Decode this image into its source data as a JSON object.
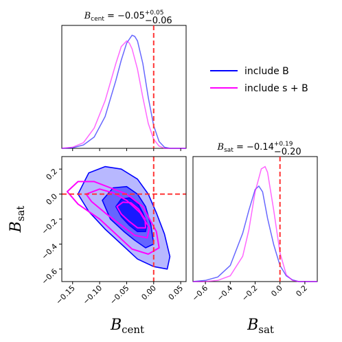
{
  "chart_data": {
    "type": "line",
    "title": "",
    "legend": {
      "placement": "top-right",
      "entries": [
        {
          "label": "include B",
          "color": "#0000ff"
        },
        {
          "label": "include s + B",
          "color": "#ff00ff"
        }
      ]
    },
    "reference_value": {
      "B_cent": 0.0,
      "B_sat": 0.0,
      "color": "#ff3333"
    },
    "panels": [
      {
        "id": "bcent_marginal",
        "type": "line",
        "title": {
          "var": "B",
          "sub": "cent",
          "text": " = −0.05",
          "sup": "+0.05",
          "low": "−0.06"
        },
        "xlim": [
          -0.17,
          0.06
        ],
        "series": [
          {
            "name": "include B",
            "color": "#0000ff",
            "x": [
              -0.17,
              -0.15,
              -0.13,
              -0.11,
              -0.09,
              -0.07,
              -0.06,
              -0.05,
              -0.04,
              -0.035,
              -0.03,
              -0.02,
              -0.01,
              0.0,
              0.01,
              0.02,
              0.03,
              0.04,
              0.05,
              0.06
            ],
            "y": [
              0.0,
              0.005,
              0.03,
              0.1,
              0.28,
              0.6,
              0.78,
              0.93,
              1.0,
              0.99,
              0.95,
              0.75,
              0.45,
              0.2,
              0.06,
              0.01,
              0.0,
              0.0,
              0.0,
              0.0
            ]
          },
          {
            "name": "include s + B",
            "color": "#ff00ff",
            "x": [
              -0.17,
              -0.15,
              -0.13,
              -0.11,
              -0.09,
              -0.07,
              -0.06,
              -0.05,
              -0.045,
              -0.04,
              -0.03,
              -0.02,
              -0.01,
              0.0,
              0.01,
              0.02,
              0.03,
              0.04,
              0.05,
              0.06
            ],
            "y": [
              0.0,
              0.01,
              0.05,
              0.18,
              0.42,
              0.75,
              0.9,
              0.95,
              0.93,
              0.88,
              0.7,
              0.45,
              0.22,
              0.08,
              0.02,
              0.0,
              0.0,
              0.0,
              0.0,
              0.0
            ]
          }
        ]
      },
      {
        "id": "bsat_marginal",
        "type": "line",
        "title": {
          "var": "B",
          "sub": "sat",
          "text": " = −0.14",
          "sup": "+0.19",
          "low": "−0.20"
        },
        "xlim": [
          -0.7,
          0.3
        ],
        "xticks": [
          -0.6,
          -0.4,
          -0.2,
          0.0,
          0.2
        ],
        "xtick_labels": [
          "−0.6",
          "−0.4",
          "−0.2",
          "0.0",
          "0.2"
        ],
        "xlabel": {
          "var": "B",
          "sub": "sat"
        },
        "series": [
          {
            "name": "include B",
            "color": "#0000ff",
            "x": [
              -0.7,
              -0.6,
              -0.5,
              -0.4,
              -0.3,
              -0.25,
              -0.2,
              -0.17,
              -0.14,
              -0.1,
              -0.05,
              0.0,
              0.05,
              0.1,
              0.15,
              0.2,
              0.25,
              0.3
            ],
            "y": [
              0.0,
              0.01,
              0.04,
              0.14,
              0.42,
              0.62,
              0.8,
              0.83,
              0.78,
              0.55,
              0.32,
              0.14,
              0.05,
              0.015,
              0.0,
              0.0,
              0.0,
              0.0
            ]
          },
          {
            "name": "include s + B",
            "color": "#ff00ff",
            "x": [
              -0.7,
              -0.6,
              -0.5,
              -0.4,
              -0.3,
              -0.25,
              -0.2,
              -0.15,
              -0.12,
              -0.1,
              -0.05,
              0.0,
              0.05,
              0.1,
              0.15,
              0.2,
              0.25,
              0.3
            ],
            "y": [
              0.0,
              0.0,
              0.01,
              0.05,
              0.22,
              0.45,
              0.78,
              0.98,
              1.0,
              0.95,
              0.62,
              0.25,
              0.06,
              0.01,
              0.0,
              0.0,
              0.0,
              0.0
            ]
          }
        ]
      },
      {
        "id": "joint",
        "type": "contour",
        "xlim": [
          -0.17,
          0.06
        ],
        "ylim": [
          -0.7,
          0.3
        ],
        "xticks": [
          -0.15,
          -0.1,
          -0.05,
          0.0,
          0.05
        ],
        "xtick_labels": [
          "−0.15",
          "−0.10",
          "−0.05",
          "0.00",
          "0.05"
        ],
        "yticks": [
          -0.6,
          -0.4,
          -0.2,
          0.0,
          0.2
        ],
        "ytick_labels": [
          "−0.6",
          "−0.4",
          "−0.2",
          "0.0",
          "0.2"
        ],
        "xlabel": {
          "var": "B",
          "sub": "cent"
        },
        "ylabel": {
          "var": "B",
          "sub": "sat"
        },
        "series": [
          {
            "name": "include B",
            "color": "#0000ff",
            "filled": true,
            "contours": [
              {
                "level": 0.997,
                "fill_opacity": 0.28,
                "points": [
                  [
                    -0.14,
                    0.0
                  ],
                  [
                    -0.12,
                    0.17
                  ],
                  [
                    -0.09,
                    0.22
                  ],
                  [
                    -0.06,
                    0.2
                  ],
                  [
                    -0.03,
                    0.12
                  ],
                  [
                    -0.01,
                    0.0
                  ],
                  [
                    0.005,
                    -0.15
                  ],
                  [
                    0.02,
                    -0.32
                  ],
                  [
                    0.03,
                    -0.5
                  ],
                  [
                    0.025,
                    -0.6
                  ],
                  [
                    0.0,
                    -0.58
                  ],
                  [
                    -0.03,
                    -0.52
                  ],
                  [
                    -0.06,
                    -0.4
                  ],
                  [
                    -0.09,
                    -0.28
                  ],
                  [
                    -0.12,
                    -0.14
                  ]
                ]
              },
              {
                "level": 0.95,
                "fill_opacity": 0.45,
                "points": [
                  [
                    -0.095,
                    -0.05
                  ],
                  [
                    -0.075,
                    0.05
                  ],
                  [
                    -0.05,
                    0.06
                  ],
                  [
                    -0.03,
                    0.0
                  ],
                  [
                    -0.015,
                    -0.1
                  ],
                  [
                    -0.005,
                    -0.25
                  ],
                  [
                    0.0,
                    -0.4
                  ],
                  [
                    -0.015,
                    -0.43
                  ],
                  [
                    -0.035,
                    -0.37
                  ],
                  [
                    -0.055,
                    -0.3
                  ],
                  [
                    -0.08,
                    -0.2
                  ]
                ]
              },
              {
                "level": 0.68,
                "fill_opacity": 0.75,
                "points": [
                  [
                    -0.07,
                    -0.1
                  ],
                  [
                    -0.06,
                    -0.04
                  ],
                  [
                    -0.045,
                    -0.03
                  ],
                  [
                    -0.03,
                    -0.07
                  ],
                  [
                    -0.02,
                    -0.15
                  ],
                  [
                    -0.012,
                    -0.24
                  ],
                  [
                    -0.015,
                    -0.3
                  ],
                  [
                    -0.03,
                    -0.3
                  ],
                  [
                    -0.045,
                    -0.25
                  ],
                  [
                    -0.06,
                    -0.18
                  ]
                ]
              }
            ]
          },
          {
            "name": "include s + B",
            "color": "#ff00ff",
            "filled": false,
            "contours": [
              {
                "level": 0.997,
                "points": [
                  [
                    -0.16,
                    0.02
                  ],
                  [
                    -0.14,
                    0.1
                  ],
                  [
                    -0.11,
                    0.1
                  ],
                  [
                    -0.08,
                    0.05
                  ],
                  [
                    -0.05,
                    0.0
                  ],
                  [
                    -0.02,
                    -0.1
                  ],
                  [
                    0.005,
                    -0.3
                  ],
                  [
                    0.01,
                    -0.43
                  ],
                  [
                    -0.01,
                    -0.48
                  ],
                  [
                    -0.04,
                    -0.44
                  ],
                  [
                    -0.07,
                    -0.32
                  ],
                  [
                    -0.1,
                    -0.2
                  ],
                  [
                    -0.14,
                    -0.08
                  ]
                ]
              },
              {
                "level": 0.95,
                "points": [
                  [
                    -0.125,
                    0.0
                  ],
                  [
                    -0.1,
                    0.04
                  ],
                  [
                    -0.075,
                    0.01
                  ],
                  [
                    -0.05,
                    -0.05
                  ],
                  [
                    -0.025,
                    -0.15
                  ],
                  [
                    -0.008,
                    -0.27
                  ],
                  [
                    -0.012,
                    -0.35
                  ],
                  [
                    -0.035,
                    -0.33
                  ],
                  [
                    -0.06,
                    -0.25
                  ],
                  [
                    -0.09,
                    -0.15
                  ],
                  [
                    -0.115,
                    -0.06
                  ]
                ]
              },
              {
                "level": 0.68,
                "points": [
                  [
                    -0.068,
                    -0.1
                  ],
                  [
                    -0.057,
                    -0.065
                  ],
                  [
                    -0.042,
                    -0.07
                  ],
                  [
                    -0.028,
                    -0.12
                  ],
                  [
                    -0.016,
                    -0.2
                  ],
                  [
                    -0.015,
                    -0.27
                  ],
                  [
                    -0.03,
                    -0.27
                  ],
                  [
                    -0.045,
                    -0.22
                  ],
                  [
                    -0.06,
                    -0.16
                  ]
                ]
              }
            ]
          }
        ]
      }
    ]
  }
}
